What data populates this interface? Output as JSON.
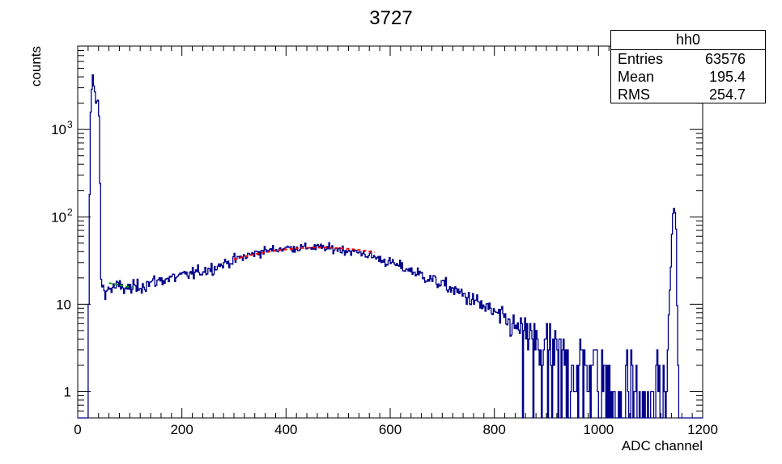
{
  "chart_data": {
    "type": "histogram",
    "title": "3727",
    "xlabel": "ADC channel",
    "ylabel": "counts",
    "xlim": [
      0,
      1200
    ],
    "ylim": [
      0.5,
      9000
    ],
    "yscale": "log",
    "x_ticks": [
      0,
      200,
      400,
      600,
      800,
      1000,
      1200
    ],
    "y_ticks": [
      {
        "value": 1,
        "label": "1"
      },
      {
        "value": 10,
        "label": "10"
      },
      {
        "value": 100,
        "label": "10",
        "exp": "2"
      },
      {
        "value": 1000,
        "label": "10",
        "exp": "3"
      }
    ],
    "grid": false,
    "colors": {
      "histogram": "#00008b",
      "fit_red": "#ff0000",
      "fit_green": "#00aa00"
    },
    "series": [
      {
        "envelope": [
          [
            0,
            0.5
          ],
          [
            18,
            0.5
          ],
          [
            20,
            1.2
          ],
          [
            22,
            60
          ],
          [
            25,
            1500
          ],
          [
            28,
            4500
          ],
          [
            32,
            3000
          ],
          [
            36,
            1700
          ],
          [
            40,
            2500
          ],
          [
            42,
            700
          ],
          [
            45,
            20
          ],
          [
            50,
            14
          ],
          [
            60,
            15
          ],
          [
            80,
            16
          ],
          [
            100,
            15
          ],
          [
            130,
            17
          ],
          [
            160,
            19
          ],
          [
            200,
            21
          ],
          [
            250,
            25
          ],
          [
            300,
            32
          ],
          [
            350,
            40
          ],
          [
            400,
            44
          ],
          [
            450,
            45
          ],
          [
            500,
            43
          ],
          [
            550,
            38
          ],
          [
            600,
            30
          ],
          [
            650,
            23
          ],
          [
            700,
            17
          ],
          [
            750,
            12
          ],
          [
            800,
            8
          ],
          [
            850,
            5
          ],
          [
            900,
            3.5
          ],
          [
            950,
            2.5
          ],
          [
            1000,
            2
          ],
          [
            1050,
            1.6
          ],
          [
            1100,
            1.4
          ],
          [
            1130,
            1.3
          ],
          [
            1138,
            20
          ],
          [
            1142,
            90
          ],
          [
            1146,
            140
          ],
          [
            1150,
            60
          ],
          [
            1152,
            2
          ],
          [
            1155,
            0.5
          ],
          [
            1200,
            0.5
          ]
        ]
      },
      {
        "name": "",
        "color": "fit_red",
        "fit": {
          "type": "gaussian",
          "amp": 44.5,
          "mean": 465,
          "sigma": 210,
          "range": [
            300,
            570
          ]
        }
      },
      {
        "name": "",
        "color": "fit_green",
        "fit": {
          "type": "linear",
          "range": [
            60,
            105
          ],
          "y": [
            17.5,
            15.5
          ]
        }
      }
    ]
  },
  "stats_box": {
    "name": "hh0",
    "rows": [
      {
        "label": "Entries",
        "value": "63576"
      },
      {
        "label": "Mean",
        "value": "195.4"
      },
      {
        "label": "RMS",
        "value": "254.7"
      }
    ]
  }
}
